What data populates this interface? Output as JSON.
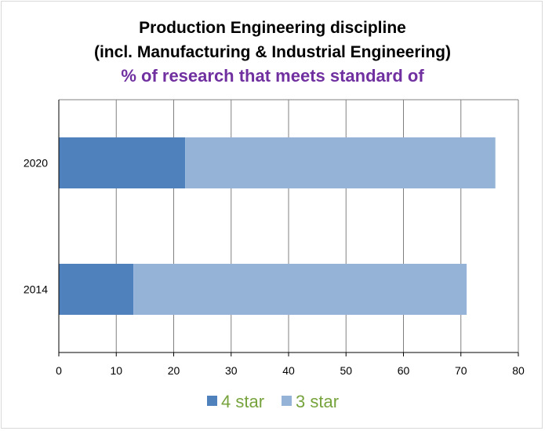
{
  "chart_data": {
    "type": "bar",
    "orientation": "horizontal",
    "stacked": true,
    "title_lines": [
      "Production Engineering discipline",
      "(incl. Manufacturing & Industrial Engineering)",
      "% of research that meets standard of"
    ],
    "categories": [
      "2020",
      "2014"
    ],
    "series": [
      {
        "name": "4 star",
        "values": [
          22,
          13
        ],
        "color": "#4f81bd"
      },
      {
        "name": "3 star",
        "values": [
          54,
          58
        ],
        "color": "#95b3d7"
      }
    ],
    "xlim": [
      0,
      80
    ],
    "xticks": [
      "0",
      "10",
      "20",
      "30",
      "40",
      "50",
      "60",
      "70",
      "80"
    ],
    "grid": true,
    "legend_position": "bottom"
  },
  "colors": {
    "subtitle": "#7030a0",
    "legend_text": "#77a33d",
    "grid": "#808080",
    "axis": "#000000"
  }
}
